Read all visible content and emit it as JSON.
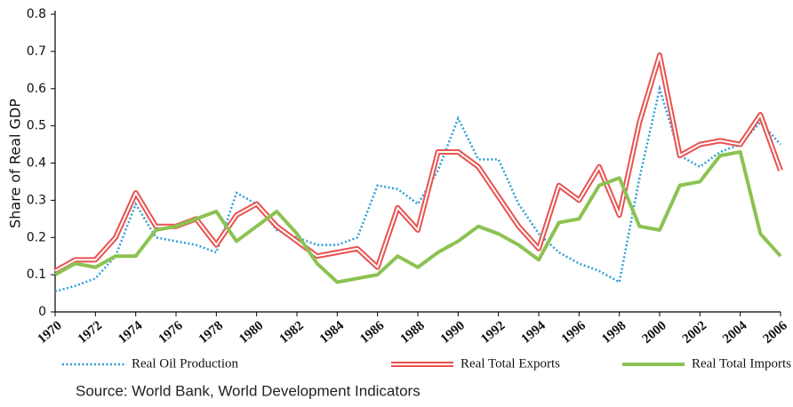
{
  "chart_data": {
    "type": "line",
    "y_label": "Share of Real GDP",
    "source": "Source: World Bank, World Development Indicators",
    "x": [
      1970,
      1971,
      1972,
      1973,
      1974,
      1975,
      1976,
      1977,
      1978,
      1979,
      1980,
      1981,
      1982,
      1983,
      1984,
      1985,
      1986,
      1987,
      1988,
      1989,
      1990,
      1991,
      1992,
      1993,
      1994,
      1995,
      1996,
      1997,
      1998,
      1999,
      2000,
      2001,
      2002,
      2003,
      2004,
      2005,
      2006
    ],
    "xlim": [
      1970,
      2006
    ],
    "xticks": [
      1970,
      1972,
      1974,
      1976,
      1978,
      1980,
      1982,
      1984,
      1986,
      1988,
      1990,
      1992,
      1994,
      1996,
      1998,
      2000,
      2002,
      2004,
      2006
    ],
    "ylim": [
      0,
      0.8
    ],
    "yticks": [
      0,
      0.1,
      0.2,
      0.3,
      0.4,
      0.5,
      0.6,
      0.7,
      0.8
    ],
    "series": [
      {
        "name": "Real Oil Production",
        "color": "#2e9fd8",
        "style": "dotted",
        "values": [
          0.055,
          0.07,
          0.09,
          0.15,
          0.29,
          0.2,
          0.19,
          0.18,
          0.16,
          0.32,
          0.29,
          0.22,
          0.2,
          0.18,
          0.18,
          0.2,
          0.34,
          0.33,
          0.29,
          0.38,
          0.52,
          0.41,
          0.41,
          0.29,
          0.21,
          0.16,
          0.13,
          0.11,
          0.08,
          0.36,
          0.6,
          0.42,
          0.39,
          0.43,
          0.45,
          0.51,
          0.45
        ]
      },
      {
        "name": "Real Total Exports",
        "color": "#e8524f",
        "style": "double",
        "values": [
          0.11,
          0.14,
          0.14,
          0.2,
          0.32,
          0.23,
          0.23,
          0.25,
          0.18,
          0.26,
          0.29,
          0.23,
          0.19,
          0.15,
          0.16,
          0.17,
          0.12,
          0.28,
          0.22,
          0.43,
          0.43,
          0.39,
          0.31,
          0.23,
          0.17,
          0.34,
          0.3,
          0.39,
          0.26,
          0.51,
          0.69,
          0.42,
          0.45,
          0.46,
          0.45,
          0.53,
          0.38
        ]
      },
      {
        "name": "Real Total Imports",
        "color": "#8cc252",
        "style": "solid",
        "values": [
          0.1,
          0.13,
          0.12,
          0.15,
          0.15,
          0.22,
          0.23,
          0.25,
          0.27,
          0.19,
          0.23,
          0.27,
          0.21,
          0.13,
          0.08,
          0.09,
          0.1,
          0.15,
          0.12,
          0.16,
          0.19,
          0.23,
          0.21,
          0.18,
          0.14,
          0.24,
          0.25,
          0.34,
          0.36,
          0.23,
          0.22,
          0.34,
          0.35,
          0.42,
          0.43,
          0.21,
          0.15
        ]
      }
    ]
  }
}
